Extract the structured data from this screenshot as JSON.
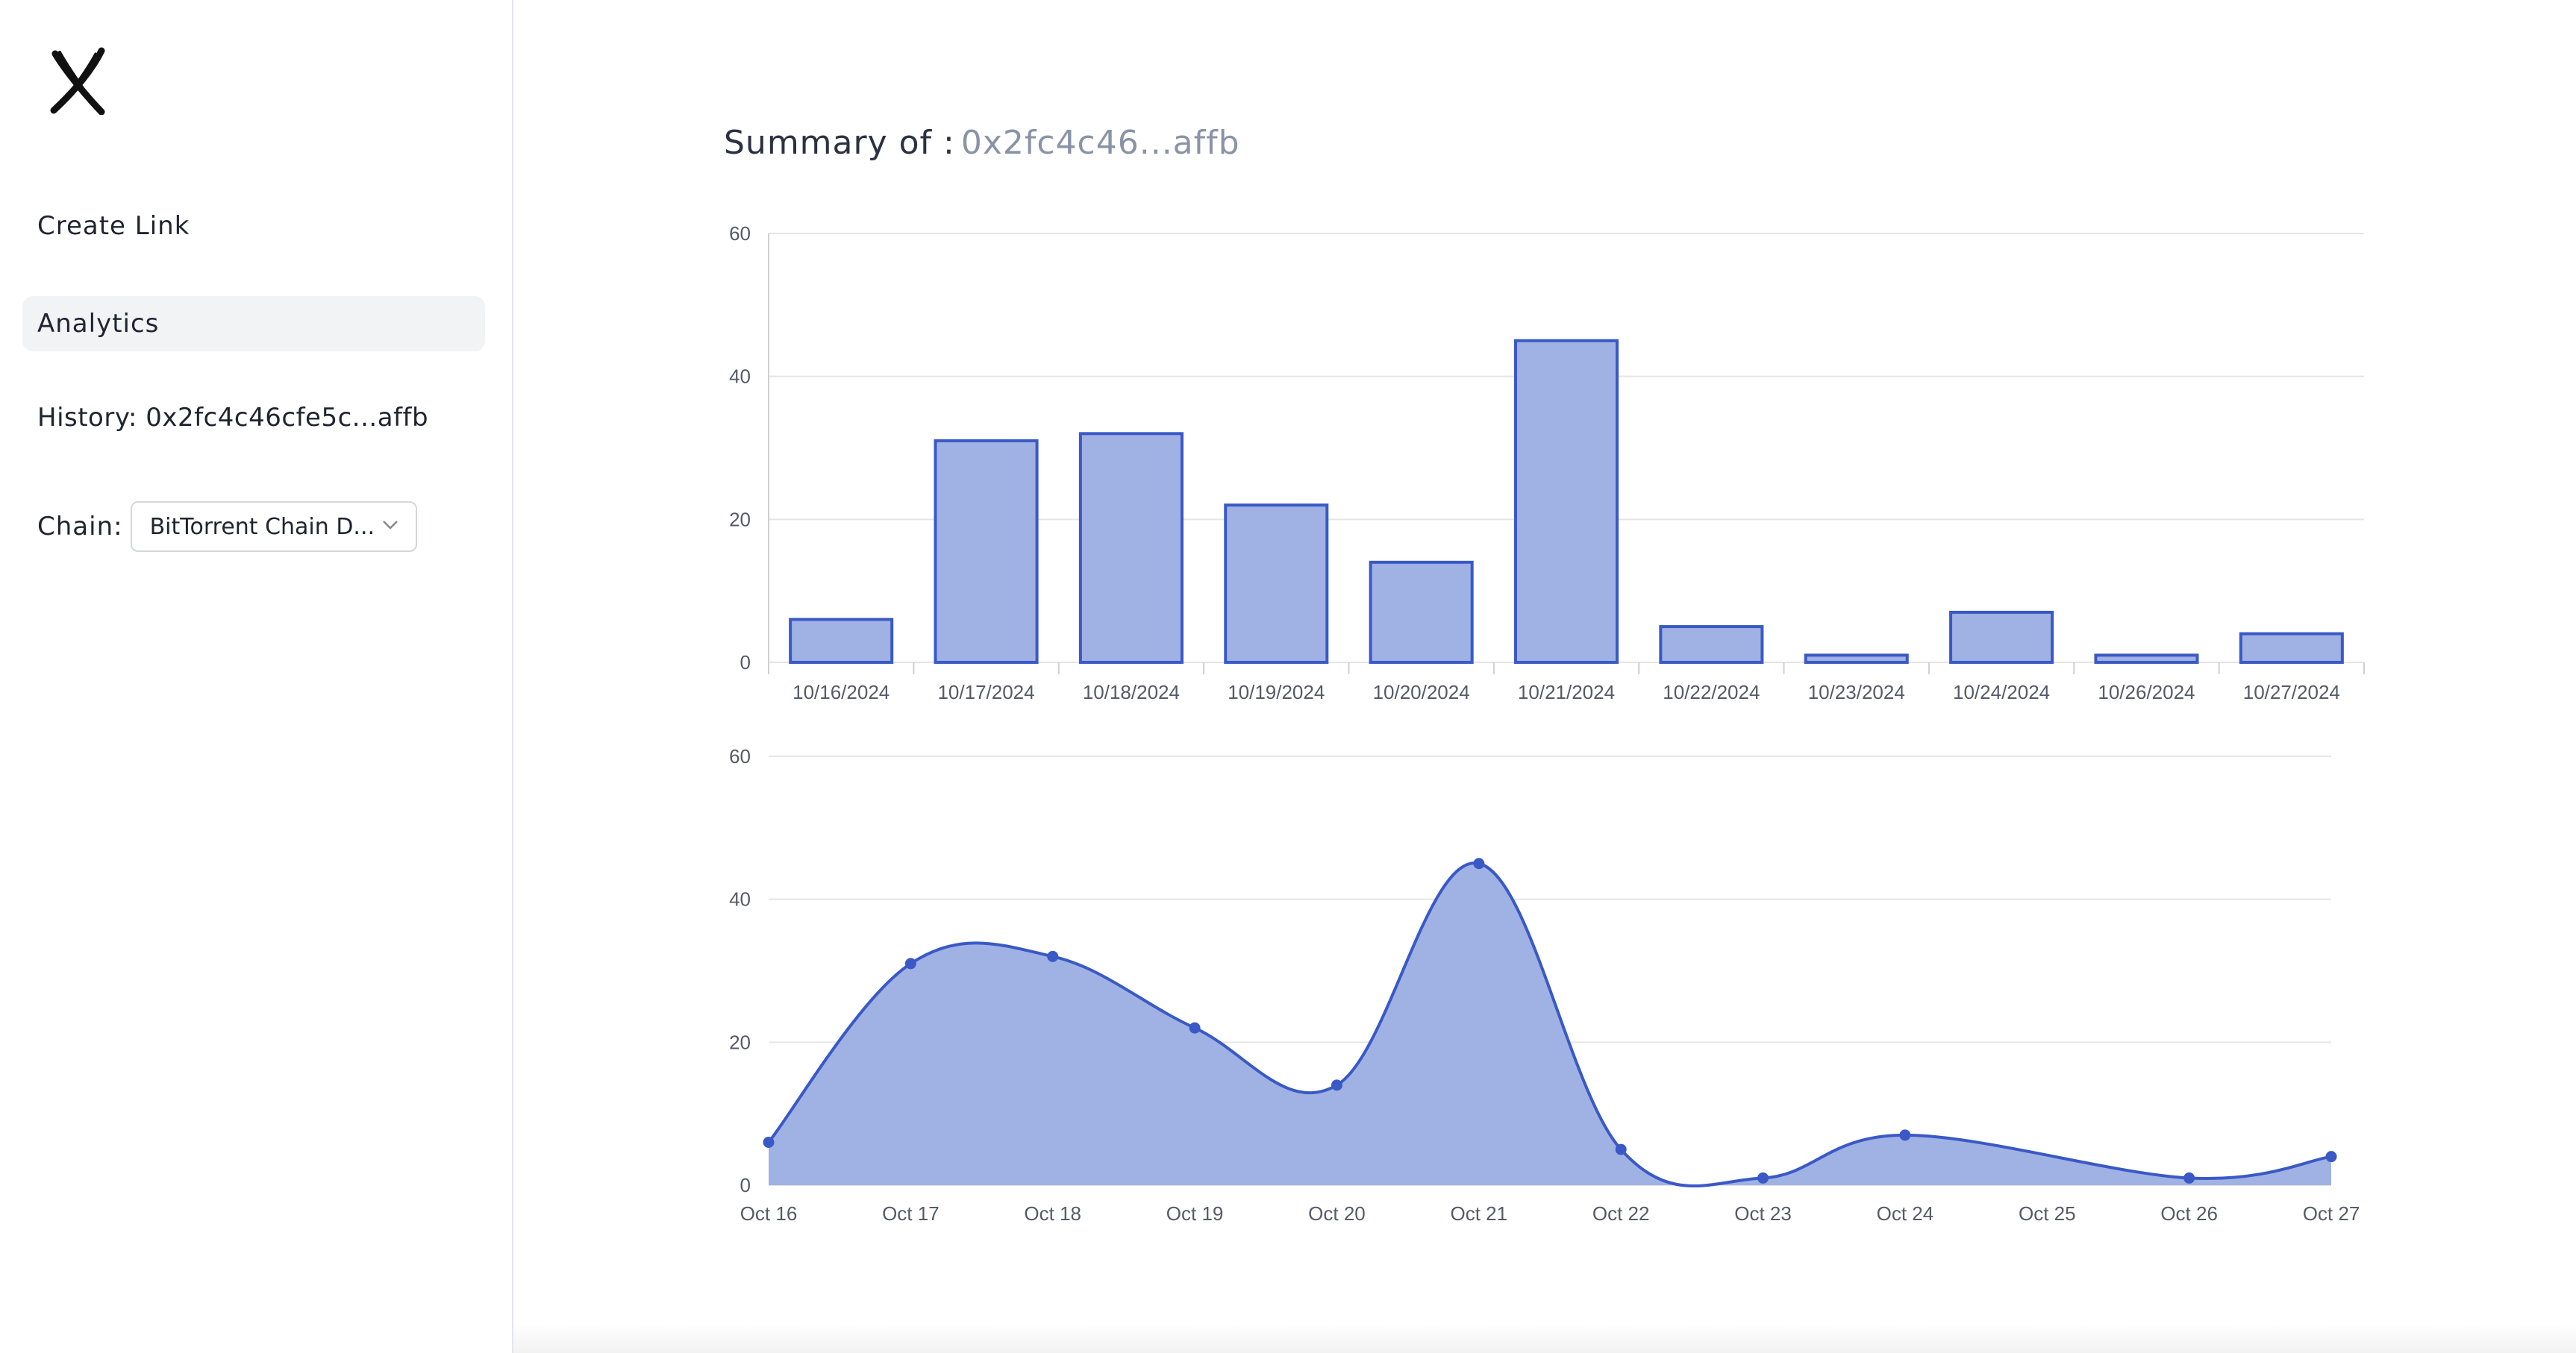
{
  "sidebar": {
    "logo_icon": "x-logo-icon",
    "items": [
      {
        "label": "Create Link",
        "active": false
      },
      {
        "label": "Analytics",
        "active": true
      }
    ],
    "history_label": "History: 0x2fc4c46cfe5c...affb",
    "chain": {
      "label": "Chain:",
      "selected": "BitTorrent Chain D..."
    }
  },
  "main": {
    "summary_label": "Summary of :",
    "summary_address": "0x2fc4c46...affb"
  },
  "colors": {
    "series_fill": "#a0b2e3",
    "series_stroke": "#3a59c6",
    "grid": "#e5e5e5",
    "axis_text": "#555b66"
  },
  "chart_data": [
    {
      "type": "bar",
      "categories": [
        "10/16/2024",
        "10/17/2024",
        "10/18/2024",
        "10/19/2024",
        "10/20/2024",
        "10/21/2024",
        "10/22/2024",
        "10/23/2024",
        "10/24/2024",
        "10/26/2024",
        "10/27/2024"
      ],
      "values": [
        6,
        31,
        32,
        22,
        14,
        45,
        5,
        1,
        7,
        1,
        4
      ],
      "ylim": [
        0,
        60
      ],
      "yticks": [
        0,
        20,
        40,
        60
      ],
      "grid": true
    },
    {
      "type": "area",
      "x": [
        "Oct 16",
        "Oct 17",
        "Oct 18",
        "Oct 19",
        "Oct 20",
        "Oct 21",
        "Oct 22",
        "Oct 23",
        "Oct 24",
        "Oct 26",
        "Oct 27"
      ],
      "xticks": [
        "Oct 16",
        "Oct 17",
        "Oct 18",
        "Oct 19",
        "Oct 20",
        "Oct 21",
        "Oct 22",
        "Oct 23",
        "Oct 24",
        "Oct 25",
        "Oct 26",
        "Oct 27"
      ],
      "values": [
        6,
        31,
        32,
        22,
        14,
        45,
        5,
        1,
        7,
        1,
        4
      ],
      "ylim": [
        0,
        60
      ],
      "yticks": [
        0,
        20,
        40,
        60
      ],
      "grid": true
    }
  ]
}
